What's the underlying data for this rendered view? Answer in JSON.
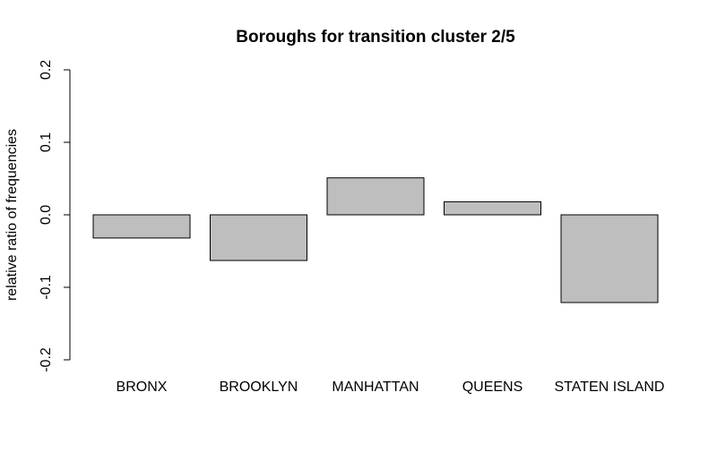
{
  "chart_data": {
    "type": "bar",
    "title": "Boroughs for transition cluster 2/5",
    "xlabel": "",
    "ylabel": "relative ratio of frequencies",
    "categories": [
      "BRONX",
      "BROOKLYN",
      "MANHATTAN",
      "QUEENS",
      "STATEN ISLAND"
    ],
    "values": [
      -0.032,
      -0.063,
      0.051,
      0.018,
      -0.121
    ],
    "ylim": [
      -0.2,
      0.2
    ],
    "yticks": [
      "-0.2",
      "-0.1",
      "0.0",
      "0.1",
      "0.2"
    ],
    "grid": false,
    "bar_color": "#bebebe",
    "bar_stroke": "#000000"
  }
}
